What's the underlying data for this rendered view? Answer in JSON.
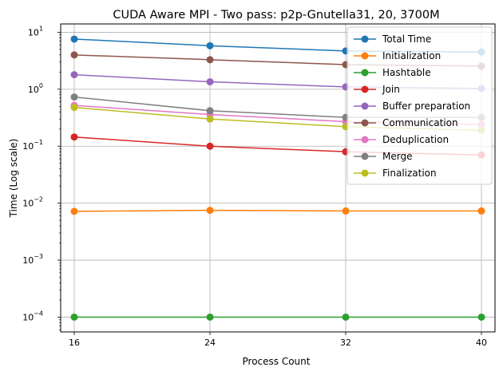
{
  "chart_data": {
    "type": "line",
    "title": "CUDA Aware MPI - Two pass: p2p-Gnutella31, 20, 3700M",
    "xlabel": "Process Count",
    "ylabel": "Time (Log scale)",
    "yscale": "log",
    "x": [
      16,
      24,
      32,
      40
    ],
    "xticks": [
      "16",
      "24",
      "32",
      "40"
    ],
    "yticks": [
      {
        "value": 0.0001,
        "base": "10",
        "exp": "−4"
      },
      {
        "value": 0.001,
        "base": "10",
        "exp": "−3"
      },
      {
        "value": 0.01,
        "base": "10",
        "exp": "−2"
      },
      {
        "value": 0.1,
        "base": "10",
        "exp": "−1"
      },
      {
        "value": 1,
        "base": "10",
        "exp": "0"
      },
      {
        "value": 10,
        "base": "10",
        "exp": "1"
      }
    ],
    "ylim": [
      5.5e-05,
      14
    ],
    "grid": true,
    "legend_position": "top-right",
    "series": [
      {
        "name": "Total Time",
        "color": "#1f77b4",
        "values": [
          7.6,
          5.8,
          4.7,
          4.5
        ]
      },
      {
        "name": "Initialization",
        "color": "#ff7f0e",
        "values": [
          0.0072,
          0.0075,
          0.0073,
          0.0073
        ]
      },
      {
        "name": "Hashtable",
        "color": "#2ca02c",
        "values": [
          0.0001,
          0.0001,
          0.0001,
          0.0001
        ]
      },
      {
        "name": "Join",
        "color": "#d62728",
        "values": [
          0.145,
          0.1,
          0.08,
          0.07
        ]
      },
      {
        "name": "Buffer preparation",
        "color": "#9467bd",
        "values": [
          1.8,
          1.35,
          1.1,
          1.03
        ]
      },
      {
        "name": "Communication",
        "color": "#8c564b",
        "values": [
          4.0,
          3.3,
          2.7,
          2.55
        ]
      },
      {
        "name": "Deduplication",
        "color": "#e377c2",
        "values": [
          0.52,
          0.36,
          0.27,
          0.24
        ]
      },
      {
        "name": "Merge",
        "color": "#7f7f7f",
        "values": [
          0.73,
          0.42,
          0.32,
          0.32
        ]
      },
      {
        "name": "Finalization",
        "color": "#bcbd22",
        "values": [
          0.48,
          0.3,
          0.22,
          0.19
        ]
      }
    ]
  }
}
